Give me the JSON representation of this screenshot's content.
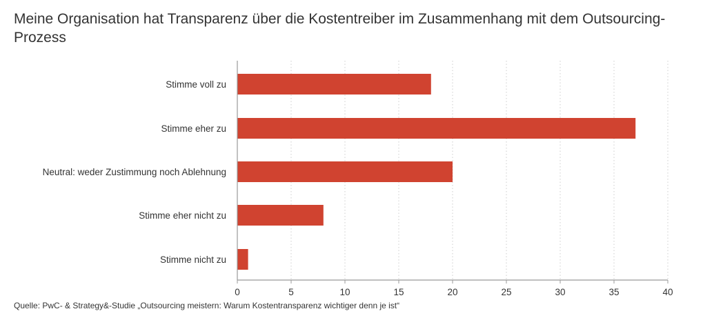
{
  "chart_data": {
    "type": "bar",
    "orientation": "horizontal",
    "title": "Meine Organisation hat Transparenz über die Kostentreiber im Zusammenhang mit dem Outsourcing-Prozess",
    "categories": [
      "Stimme voll zu",
      "Stimme eher zu",
      "Neutral: weder Zustimmung noch Ablehnung",
      "Stimme eher nicht zu",
      "Stimme nicht zu"
    ],
    "values": [
      18,
      37,
      20,
      8,
      1
    ],
    "xlim": [
      0,
      40
    ],
    "xticks": [
      0,
      5,
      10,
      15,
      20,
      25,
      30,
      35,
      40
    ],
    "grid": "vertical dotted",
    "bar_color": "#D04330",
    "grid_color": "#CCCCCC",
    "axis_color": "#999999"
  },
  "source": "Quelle: PwC- & Strategy&-Studie „Outsourcing meistern: Warum Kostentransparenz wichtiger denn je ist“"
}
